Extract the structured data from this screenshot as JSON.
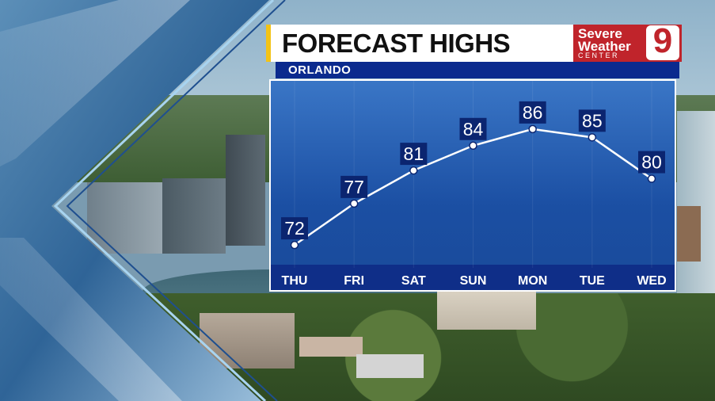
{
  "header": {
    "title": "FORECAST HIGHS",
    "location": "ORLANDO"
  },
  "logo": {
    "line1": "Severe",
    "line2": "Weather",
    "line3": "CENTER",
    "channel": "9"
  },
  "colors": {
    "accent_yellow": "#f3c316",
    "logo_red": "#c0242b",
    "strip_blue": "#0f2e88",
    "label_navy": "#0b2570"
  },
  "chart_data": {
    "type": "line",
    "categories": [
      "THU",
      "FRI",
      "SAT",
      "SUN",
      "MON",
      "TUE",
      "WED"
    ],
    "values": [
      72,
      77,
      81,
      84,
      86,
      85,
      80
    ],
    "title": "FORECAST HIGHS",
    "subtitle": "ORLANDO",
    "xlabel": "",
    "ylabel": "",
    "ylim": [
      70,
      88
    ],
    "grid": false,
    "legend": "none"
  }
}
